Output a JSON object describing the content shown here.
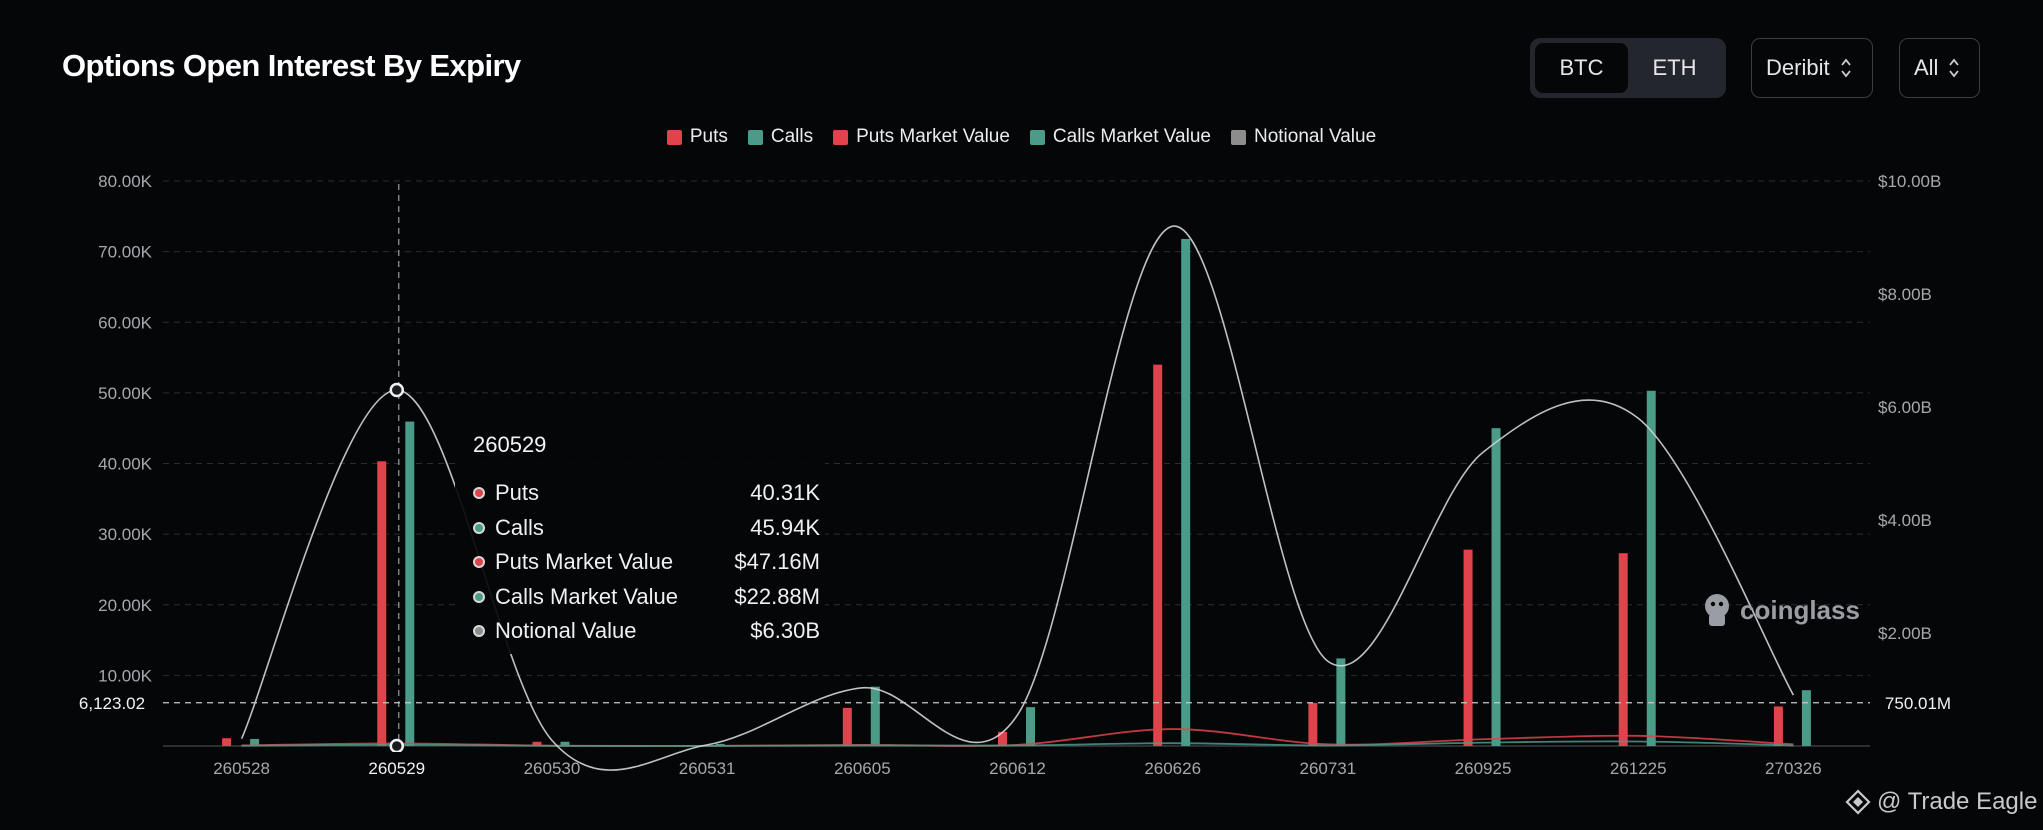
{
  "header": {
    "title": "Options Open Interest By Expiry",
    "asset_toggle": {
      "options": [
        "BTC",
        "ETH"
      ],
      "selected": "BTC"
    },
    "exchange_select": {
      "value": "Deribit"
    },
    "range_select": {
      "value": "All"
    }
  },
  "tooltip": {
    "title": "260529",
    "rows": [
      {
        "label": "Puts",
        "value": "40.31K",
        "color": "#e0434b"
      },
      {
        "label": "Calls",
        "value": "45.94K",
        "color": "#4a9b87"
      },
      {
        "label": "Puts Market Value",
        "value": "$47.16M",
        "color": "#e0434b"
      },
      {
        "label": "Calls Market Value",
        "value": "$22.88M",
        "color": "#4a9b87"
      },
      {
        "label": "Notional Value",
        "value": "$6.30B",
        "color": "#8d8d8d"
      }
    ]
  },
  "watermark": {
    "text": "coinglass"
  },
  "credit": {
    "text": "@ Trade Eagle"
  },
  "chart_data": {
    "type": "bar",
    "categories": [
      "260528",
      "260529",
      "260530",
      "260531",
      "260605",
      "260612",
      "260626",
      "260731",
      "260925",
      "261225",
      "270326"
    ],
    "series": [
      {
        "name": "Puts",
        "kind": "bar",
        "axis": "left",
        "color": "#e0434b",
        "values": [
          1100,
          40310,
          600,
          100,
          5400,
          2000,
          54000,
          6100,
          27800,
          27300,
          5600
        ]
      },
      {
        "name": "Calls",
        "kind": "bar",
        "axis": "left",
        "color": "#4a9b87",
        "values": [
          1000,
          45940,
          600,
          300,
          8400,
          5500,
          71800,
          12400,
          45000,
          50300,
          7900
        ]
      },
      {
        "name": "Puts Market Value",
        "kind": "line",
        "axis": "right",
        "color": "#e0434b",
        "values": [
          0.01,
          0.047,
          0.005,
          0.002,
          0.02,
          0.02,
          0.3,
          0.03,
          0.12,
          0.18,
          0.03
        ]
      },
      {
        "name": "Calls Market Value",
        "kind": "line",
        "axis": "right",
        "color": "#4a9b87",
        "values": [
          0.005,
          0.023,
          0.003,
          0.001,
          0.01,
          0.01,
          0.05,
          0.01,
          0.06,
          0.08,
          0.01
        ]
      },
      {
        "name": "Notional Value",
        "kind": "line",
        "axis": "right",
        "color": "#d5d5d5",
        "values": [
          0.13,
          6.3,
          0.1,
          0.02,
          1.03,
          0.55,
          9.2,
          1.5,
          5.2,
          5.8,
          0.9
        ]
      }
    ],
    "left_axis": {
      "ticks": [
        "80.00K",
        "70.00K",
        "60.00K",
        "50.00K",
        "40.00K",
        "30.00K",
        "20.00K",
        "10.00K"
      ],
      "ylim": [
        0,
        80000
      ]
    },
    "right_axis": {
      "ticks": [
        "$10.00B",
        "$8.00B",
        "$6.00B",
        "$4.00B",
        "$2.00B"
      ],
      "ylim": [
        0,
        10
      ]
    },
    "crosshair": {
      "category": "260529",
      "left_value": 6123.02,
      "left_label": "6,123.02",
      "right_label": "750.01M"
    },
    "legend": "top-center",
    "grid": true
  }
}
